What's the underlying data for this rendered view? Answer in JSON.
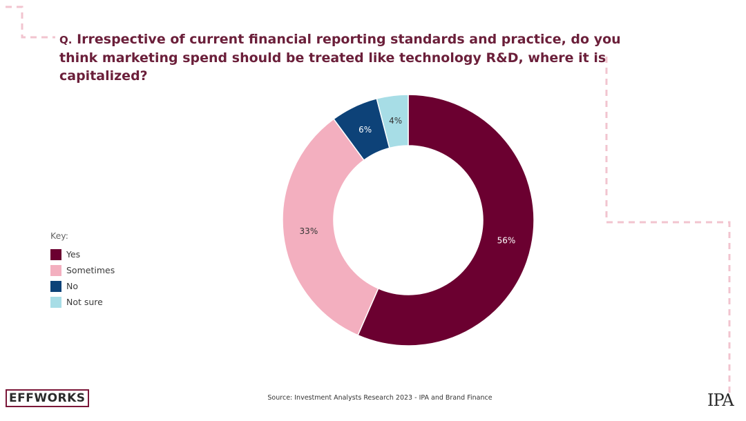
{
  "question": {
    "prefix": "Q.",
    "text": "Irrespective of current financial reporting standards and practice, do you think marketing spend should be treated like technology R&D, where it is capitalized?"
  },
  "legend": {
    "title": "Key:"
  },
  "source": "Source: Investment Analysts Research 2023 - IPA and Brand Finance",
  "logos": {
    "left": "EFFWORKS",
    "right": "IPA"
  },
  "chart_data": {
    "type": "pie",
    "donut": true,
    "categories": [
      "Yes",
      "Sometimes",
      "No",
      "Not sure"
    ],
    "values": [
      56,
      33,
      6,
      4
    ],
    "labels": [
      "56%",
      "33%",
      "6%",
      "4%"
    ],
    "colors": [
      "#6b0030",
      "#f3afbf",
      "#0d4278",
      "#a7dde6"
    ],
    "label_colors": [
      "#ffffff",
      "#333333",
      "#ffffff",
      "#333333"
    ],
    "legend_position": "left"
  }
}
